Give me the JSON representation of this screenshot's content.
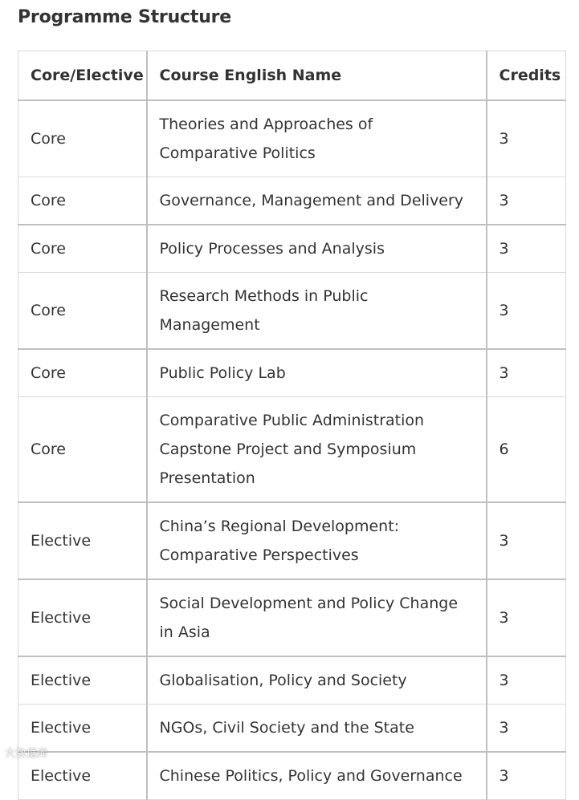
{
  "title": "Programme Structure",
  "table": {
    "headers": {
      "type": "Core/Elective",
      "course": "Course English Name",
      "credits": "Credits"
    },
    "rows": [
      {
        "type": "Core",
        "course": "Theories and Approaches of Comparative Politics",
        "credits": "3"
      },
      {
        "type": "Core",
        "course": "Governance, Management and Delivery",
        "credits": "3"
      },
      {
        "type": "Core",
        "course": "Policy Processes and Analysis",
        "credits": "3"
      },
      {
        "type": "Core",
        "course": "Research Methods in Public Management",
        "credits": "3"
      },
      {
        "type": "Core",
        "course": "Public Policy Lab",
        "credits": "3"
      },
      {
        "type": "Core",
        "course": "Comparative Public Administration Capstone Project and Symposium Presentation",
        "credits": "6"
      },
      {
        "type": "Elective",
        "course": "China’s Regional Development: Comparative Perspectives",
        "credits": "3"
      },
      {
        "type": "Elective",
        "course": "Social Development and Policy Change in Asia",
        "credits": "3"
      },
      {
        "type": "Elective",
        "course": "Globalisation, Policy and Society",
        "credits": "3"
      },
      {
        "type": "Elective",
        "course": "NGOs, Civil Society and the State",
        "credits": "3"
      },
      {
        "type": "Elective",
        "course": "Chinese Politics, Policy and Governance",
        "credits": "3"
      }
    ]
  },
  "watermark": "大数据库"
}
